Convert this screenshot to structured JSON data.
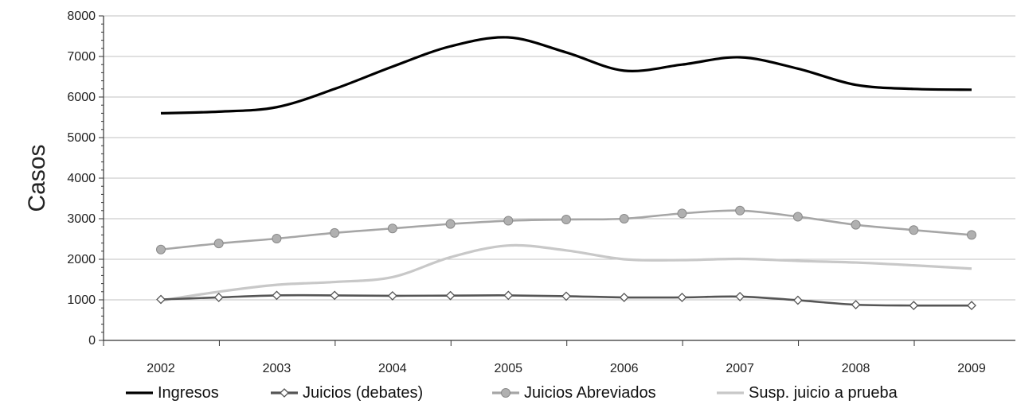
{
  "chart_data": {
    "type": "line",
    "title": "",
    "xlabel": "",
    "ylabel": "Casos",
    "ylim": [
      0,
      8000
    ],
    "yticks": [
      0,
      1000,
      2000,
      3000,
      4000,
      5000,
      6000,
      7000,
      8000
    ],
    "xlim": [
      2002,
      2009
    ],
    "xticks": [
      "2002",
      "2003",
      "2004",
      "2005",
      "2006",
      "2007",
      "2008",
      "2009"
    ],
    "grid": "horizontal",
    "legend_position": "bottom",
    "series": [
      {
        "name": "Ingresos",
        "color": "#000000",
        "marker": "none",
        "x": [
          2002,
          2002.5,
          2003,
          2003.5,
          2004,
          2004.5,
          2005,
          2005.5,
          2006,
          2006.5,
          2007,
          2007.5,
          2008,
          2008.5,
          2009
        ],
        "values": [
          5600,
          5640,
          5750,
          6200,
          6750,
          7250,
          7470,
          7100,
          6650,
          6800,
          6980,
          6700,
          6300,
          6200,
          6180
        ]
      },
      {
        "name": "Juicios (debates)",
        "color": "#555555",
        "marker": "diamond",
        "x": [
          2002,
          2002.5,
          2003,
          2003.5,
          2004,
          2004.5,
          2005,
          2005.5,
          2006,
          2006.5,
          2007,
          2007.5,
          2008,
          2008.5,
          2009
        ],
        "values": [
          1010,
          1060,
          1110,
          1110,
          1100,
          1105,
          1110,
          1090,
          1060,
          1060,
          1080,
          990,
          880,
          860,
          860
        ]
      },
      {
        "name": "Juicios Abreviados",
        "color": "#a6a6a6",
        "marker": "circle",
        "x": [
          2002,
          2002.5,
          2003,
          2003.5,
          2004,
          2004.5,
          2005,
          2005.5,
          2006,
          2006.5,
          2007,
          2007.5,
          2008,
          2008.5,
          2009
        ],
        "values": [
          2240,
          2390,
          2510,
          2650,
          2760,
          2870,
          2950,
          2980,
          3000,
          3130,
          3200,
          3050,
          2850,
          2720,
          2600
        ]
      },
      {
        "name": "Susp. juicio a prueba",
        "color": "#c8c8c8",
        "marker": "none",
        "x": [
          2002,
          2002.5,
          2003,
          2003.5,
          2004,
          2004.5,
          2005,
          2005.5,
          2006,
          2006.5,
          2007,
          2007.5,
          2008,
          2008.5,
          2009
        ],
        "values": [
          980,
          1200,
          1370,
          1440,
          1560,
          2050,
          2340,
          2220,
          2000,
          1980,
          2010,
          1960,
          1920,
          1850,
          1770
        ]
      }
    ]
  }
}
